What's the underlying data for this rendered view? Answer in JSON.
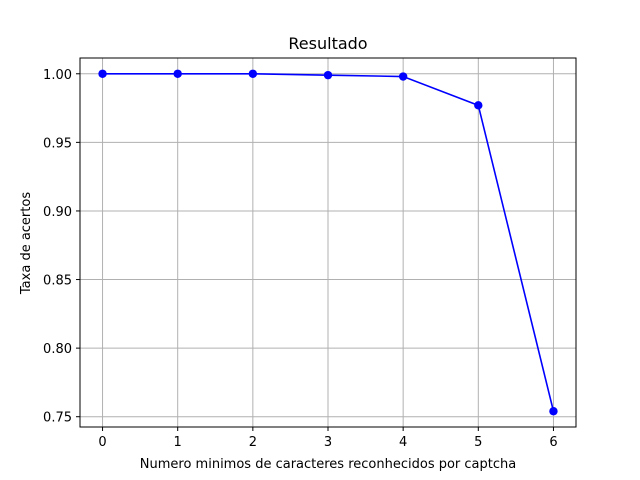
{
  "chart_data": {
    "type": "line",
    "title": "Resultado",
    "xlabel": "Numero minimos de caracteres reconhecidos por captcha",
    "ylabel": "Taxa de acertos",
    "x": [
      0,
      1,
      2,
      3,
      4,
      5,
      6
    ],
    "series": [
      {
        "values": [
          1.0,
          1.0,
          1.0,
          0.999,
          0.998,
          0.977,
          0.754
        ],
        "color": "#0000ff",
        "marker": "circle"
      }
    ],
    "xlim": [
      -0.3,
      6.3
    ],
    "ylim": [
      0.7425,
      1.0115
    ],
    "xticks": [
      "0",
      "1",
      "2",
      "3",
      "4",
      "5",
      "6"
    ],
    "yticks": [
      "0.75",
      "0.80",
      "0.85",
      "0.90",
      "0.95",
      "1.00"
    ],
    "grid": true
  }
}
